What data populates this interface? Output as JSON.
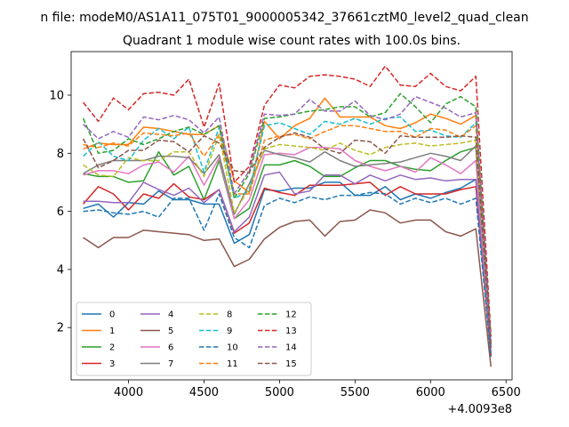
{
  "chart_data": {
    "type": "line",
    "suptitle": "n file: modeM0/AS1A11_075T01_9000005342_37661cztM0_level2_quad_clean",
    "title": "Quadrant 1 module wise count rates with 100.0s bins.",
    "xlabel": "",
    "ylabel": "",
    "x_offset_label": "+4.0093e8",
    "xlim": [
      3620,
      6540
    ],
    "ylim": [
      0.2,
      11.5
    ],
    "x_ticks": [
      4000,
      4500,
      5000,
      5500,
      6000,
      6500
    ],
    "y_ticks": [
      2,
      4,
      6,
      8,
      10
    ],
    "grid": false,
    "legend_placement": "lower-left",
    "x": [
      3700,
      3800,
      3900,
      4000,
      4100,
      4200,
      4300,
      4400,
      4500,
      4600,
      4700,
      4800,
      4900,
      5000,
      5100,
      5200,
      5300,
      5400,
      5500,
      5600,
      5700,
      5800,
      5900,
      6000,
      6100,
      6200,
      6300,
      6400
    ],
    "series": [
      {
        "name": "0",
        "color": "#1f77b4",
        "dash": "solid",
        "values": [
          6.1,
          6.25,
          5.8,
          6.3,
          6.25,
          6.7,
          6.4,
          6.4,
          6.25,
          6.25,
          4.9,
          5.2,
          6.75,
          6.7,
          6.8,
          6.8,
          7.0,
          7.0,
          6.55,
          6.55,
          6.85,
          6.4,
          6.6,
          6.45,
          6.65,
          6.8,
          7.1,
          1.0
        ]
      },
      {
        "name": "1",
        "color": "#ff7f0e",
        "dash": "solid",
        "values": [
          8.15,
          8.35,
          8.3,
          8.3,
          8.9,
          8.85,
          8.75,
          8.65,
          8.65,
          8.95,
          7.05,
          6.65,
          9.1,
          8.5,
          8.95,
          9.2,
          9.9,
          9.25,
          9.25,
          9.25,
          8.95,
          8.85,
          9.05,
          9.35,
          9.2,
          9.0,
          9.3,
          1.1
        ]
      },
      {
        "name": "2",
        "color": "#2ca02c",
        "dash": "solid",
        "values": [
          7.3,
          7.2,
          7.2,
          7.0,
          7.05,
          8.05,
          7.25,
          7.55,
          6.4,
          7.75,
          5.75,
          6.1,
          7.6,
          7.6,
          7.75,
          7.55,
          7.2,
          7.2,
          7.5,
          7.75,
          7.75,
          7.55,
          7.45,
          7.4,
          7.75,
          8.05,
          8.2,
          1.3
        ]
      },
      {
        "name": "3",
        "color": "#d62728",
        "dash": "solid",
        "values": [
          6.25,
          6.85,
          6.6,
          6.05,
          6.6,
          6.45,
          6.95,
          6.5,
          6.4,
          6.75,
          5.25,
          5.6,
          6.8,
          6.65,
          6.55,
          6.9,
          6.9,
          6.9,
          6.95,
          7.0,
          6.55,
          6.85,
          6.6,
          6.6,
          6.6,
          6.75,
          6.85,
          1.05
        ]
      },
      {
        "name": "4",
        "color": "#9467bd",
        "dash": "solid",
        "values": [
          6.35,
          6.35,
          6.3,
          6.3,
          7.0,
          6.75,
          6.55,
          6.8,
          6.3,
          6.75,
          5.3,
          5.8,
          7.25,
          7.35,
          6.6,
          6.7,
          7.25,
          7.25,
          6.95,
          7.25,
          7.05,
          7.25,
          7.1,
          7.15,
          7.05,
          7.1,
          7.1,
          1.1
        ]
      },
      {
        "name": "5",
        "color": "#8c564b",
        "dash": "solid",
        "values": [
          5.1,
          4.75,
          5.1,
          5.1,
          5.35,
          5.3,
          5.25,
          5.2,
          5.0,
          5.05,
          4.1,
          4.35,
          5.05,
          5.45,
          5.65,
          5.7,
          5.15,
          5.65,
          5.7,
          6.05,
          5.95,
          5.6,
          5.7,
          5.7,
          5.3,
          5.15,
          5.4,
          0.65
        ]
      },
      {
        "name": "6",
        "color": "#e377c2",
        "dash": "solid",
        "values": [
          7.25,
          7.4,
          7.4,
          7.3,
          7.6,
          7.7,
          7.35,
          7.9,
          6.9,
          7.85,
          5.75,
          6.4,
          7.95,
          8.0,
          7.95,
          8.2,
          8.2,
          8.15,
          7.75,
          7.55,
          7.4,
          7.55,
          7.35,
          7.85,
          7.6,
          7.3,
          7.75,
          1.3
        ]
      },
      {
        "name": "7",
        "color": "#7f7f7f",
        "dash": "solid",
        "values": [
          7.3,
          7.6,
          7.75,
          7.75,
          7.75,
          7.9,
          7.9,
          7.85,
          7.3,
          7.95,
          5.9,
          6.95,
          8.1,
          7.95,
          7.85,
          7.7,
          8.05,
          7.75,
          7.55,
          7.6,
          7.65,
          7.7,
          7.85,
          8.0,
          7.9,
          7.75,
          8.25,
          1.3
        ]
      },
      {
        "name": "8",
        "color": "#bcbd22",
        "dash": "dash",
        "values": [
          7.6,
          7.25,
          7.2,
          7.85,
          7.75,
          7.75,
          8.05,
          8.05,
          7.2,
          8.65,
          5.95,
          6.8,
          8.15,
          8.3,
          8.25,
          8.2,
          8.1,
          8.35,
          8.1,
          7.95,
          8.2,
          8.3,
          8.35,
          8.25,
          8.3,
          8.35,
          8.45,
          1.4
        ]
      },
      {
        "name": "9",
        "color": "#17becf",
        "dash": "dash",
        "values": [
          7.9,
          8.4,
          7.9,
          7.75,
          8.45,
          8.85,
          8.5,
          8.9,
          7.35,
          8.9,
          6.45,
          6.7,
          8.95,
          9.05,
          8.85,
          8.65,
          9.1,
          9.0,
          9.2,
          9.0,
          9.2,
          9.25,
          8.75,
          8.8,
          8.6,
          8.55,
          9.05,
          1.6
        ]
      },
      {
        "name": "10",
        "color": "#1f77b4",
        "dash": "dash",
        "values": [
          6.0,
          6.05,
          5.95,
          5.9,
          6.0,
          5.8,
          6.45,
          6.45,
          5.35,
          6.6,
          5.1,
          4.75,
          6.2,
          6.45,
          6.3,
          6.5,
          6.4,
          6.55,
          6.55,
          6.65,
          6.6,
          6.25,
          6.45,
          6.3,
          6.45,
          6.25,
          6.45,
          1.0
        ]
      },
      {
        "name": "11",
        "color": "#ff7f0e",
        "dash": "dash",
        "values": [
          8.3,
          8.2,
          8.35,
          8.25,
          8.7,
          8.65,
          8.6,
          8.7,
          7.9,
          8.65,
          6.6,
          6.6,
          8.45,
          8.6,
          8.65,
          8.5,
          8.75,
          8.95,
          8.95,
          8.85,
          8.75,
          8.75,
          8.55,
          8.85,
          8.8,
          8.55,
          8.95,
          1.4
        ]
      },
      {
        "name": "12",
        "color": "#2ca02c",
        "dash": "dash",
        "values": [
          9.2,
          8.0,
          8.1,
          8.5,
          8.3,
          8.5,
          8.75,
          8.9,
          8.65,
          8.95,
          6.45,
          7.3,
          9.2,
          9.25,
          9.35,
          9.45,
          9.5,
          9.6,
          9.6,
          9.25,
          9.4,
          10.05,
          9.6,
          9.05,
          9.7,
          9.95,
          9.6,
          1.5
        ]
      },
      {
        "name": "13",
        "color": "#d62728",
        "dash": "dash",
        "values": [
          9.75,
          9.1,
          9.9,
          9.5,
          10.05,
          10.1,
          10.0,
          10.55,
          8.9,
          10.4,
          7.0,
          7.55,
          9.65,
          10.35,
          10.25,
          10.65,
          10.7,
          10.65,
          10.55,
          10.3,
          11.0,
          10.35,
          10.3,
          10.75,
          10.3,
          10.15,
          10.65,
          1.7
        ]
      },
      {
        "name": "14",
        "color": "#9467bd",
        "dash": "dash",
        "values": [
          9.0,
          8.5,
          8.75,
          8.55,
          9.25,
          9.15,
          9.3,
          9.15,
          8.7,
          9.25,
          6.6,
          7.4,
          9.35,
          9.3,
          9.35,
          9.85,
          9.45,
          9.45,
          9.8,
          9.3,
          9.15,
          9.35,
          9.95,
          9.75,
          9.55,
          9.25,
          9.4,
          1.4
        ]
      },
      {
        "name": "15",
        "color": "#8c564b",
        "dash": "dash",
        "values": [
          8.5,
          7.5,
          7.75,
          8.1,
          8.1,
          8.45,
          8.4,
          8.05,
          8.6,
          8.35,
          7.4,
          7.35,
          8.2,
          8.55,
          8.7,
          8.55,
          8.15,
          8.0,
          8.45,
          8.4,
          8.0,
          8.6,
          8.55,
          8.55,
          8.55,
          8.6,
          8.55,
          1.3
        ]
      }
    ]
  }
}
